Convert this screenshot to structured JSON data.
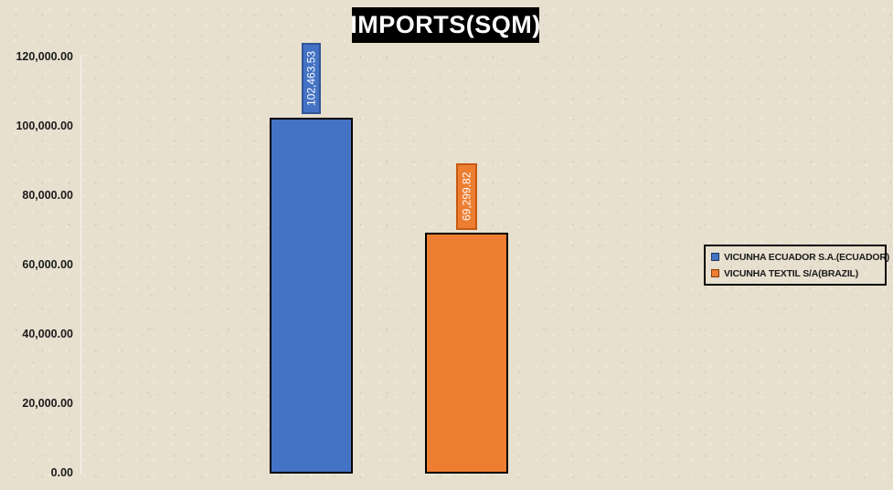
{
  "page": {
    "background_color": "#E8E0CF"
  },
  "chart_data": {
    "type": "bar",
    "title": "IMPORTS(SQM)",
    "title_colors": {
      "background": "#000000",
      "text": "#FFFFFF"
    },
    "categories": [
      ""
    ],
    "series": [
      {
        "name": "VICUNHA ECUADOR S.A.(ECUADOR)",
        "values": [
          102463.53
        ],
        "data_label": "102,463.53",
        "color": "#4472C4",
        "label_border_color": "#2F5597"
      },
      {
        "name": "VICUNHA TEXTIL S/A(BRAZIL)",
        "values": [
          69299.82
        ],
        "data_label": "69,299.82",
        "color": "#ED7D31",
        "label_border_color": "#C55A11"
      }
    ],
    "xlabel": "",
    "ylabel": "",
    "ylim": [
      0,
      120000
    ],
    "ytick_step": 20000,
    "yticks": [
      "120,000.00",
      "100,000.00",
      "80,000.00",
      "60,000.00",
      "40,000.00",
      "20,000.00",
      "0.00"
    ],
    "grid": false,
    "bar_border_color": "#000000",
    "legend_position": "right",
    "legend_border_color": "#000000"
  }
}
